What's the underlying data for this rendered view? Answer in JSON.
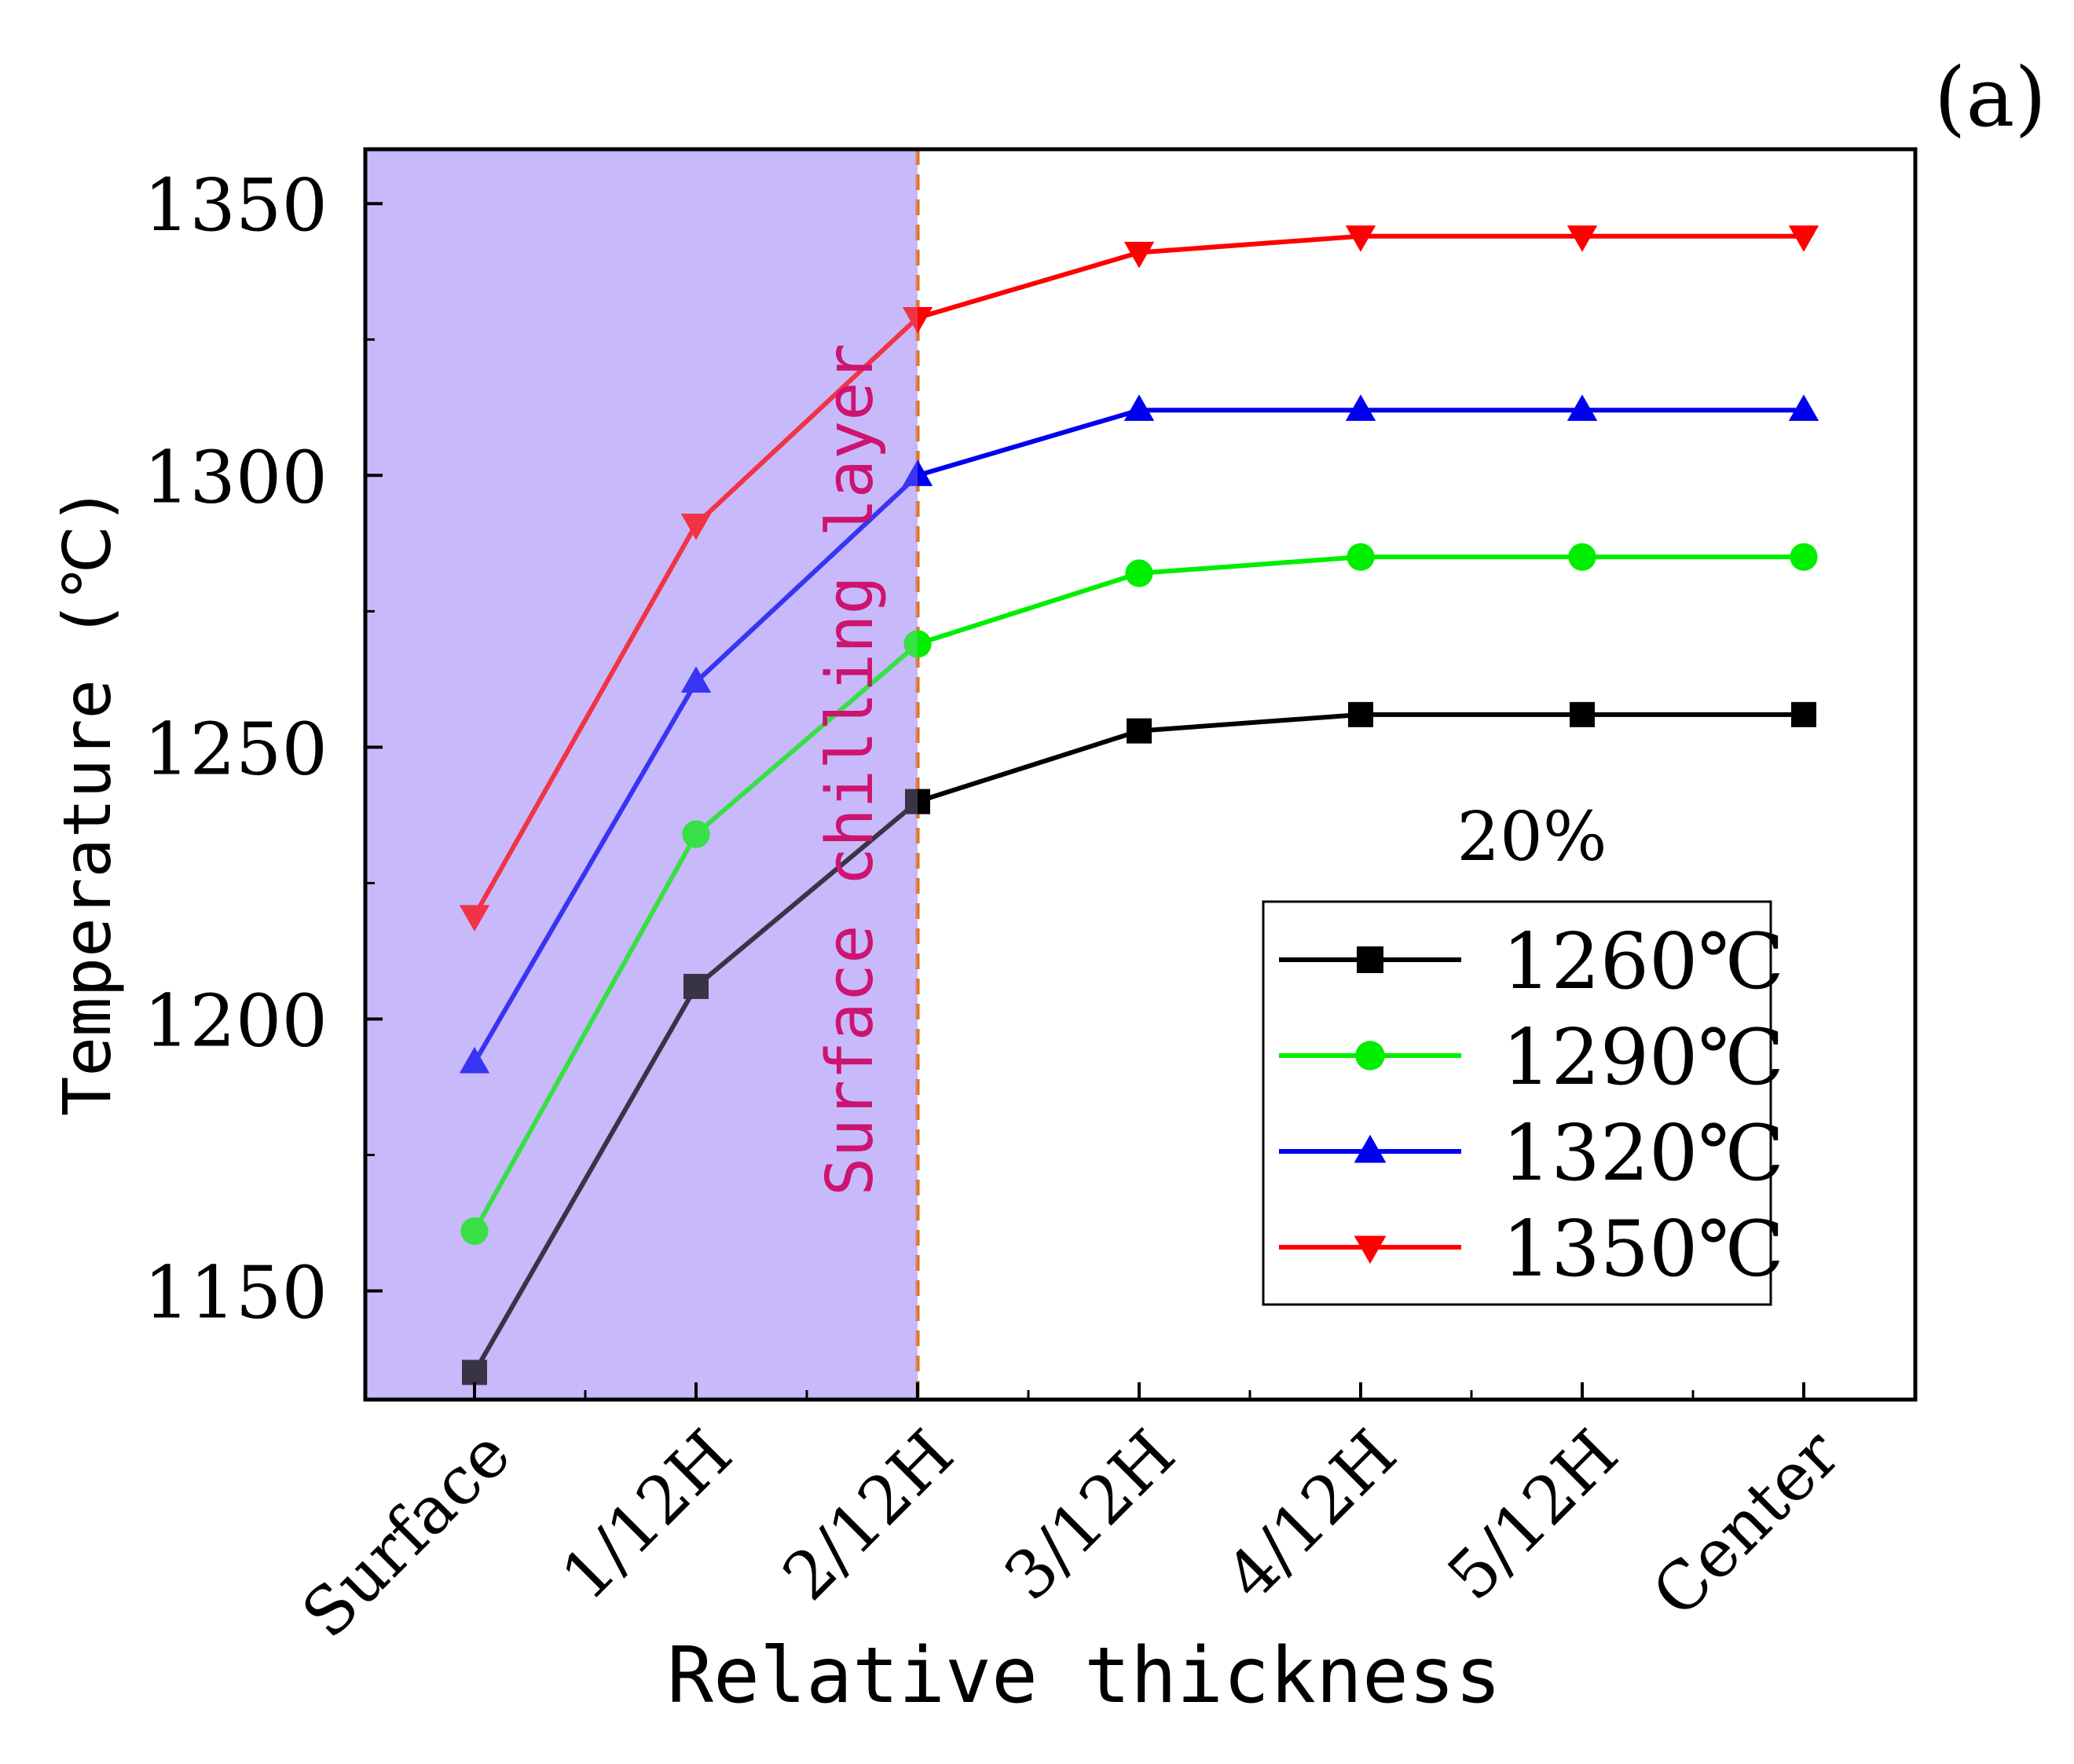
{
  "panel_label": "(a)",
  "chart_data": {
    "type": "line",
    "title": "",
    "xlabel": "Relative thickness",
    "ylabel": "Temperature (℃)",
    "categories": [
      "Surface",
      "1/12H",
      "2/12H",
      "3/12H",
      "4/12H",
      "5/12H",
      "Center"
    ],
    "yticks": [
      1150,
      1200,
      1250,
      1300,
      1350
    ],
    "ylim": [
      1130,
      1360
    ],
    "grid": false,
    "legend_title": "20%",
    "legend_position": "bottom-right",
    "region": {
      "label": "Surface chilling layer",
      "from_category": "Surface",
      "to_category": "2/12H",
      "fill_color": "#c8b9fb",
      "line_color": "#e0701e",
      "label_color": "#cc1470"
    },
    "series": [
      {
        "name": "1260℃",
        "color": "#000000",
        "marker": "square",
        "values": [
          1135,
          1206,
          1240,
          1253,
          1256,
          1256,
          1256
        ]
      },
      {
        "name": "1290℃",
        "color": "#00ee00",
        "marker": "circle",
        "values": [
          1161,
          1234,
          1269,
          1282,
          1285,
          1285,
          1285
        ]
      },
      {
        "name": "1320℃",
        "color": "#0000ee",
        "marker": "triangle-up",
        "values": [
          1192,
          1262,
          1300,
          1312,
          1312,
          1312,
          1312
        ]
      },
      {
        "name": "1350℃",
        "color": "#ff0000",
        "marker": "triangle-down",
        "values": [
          1219,
          1291,
          1329,
          1341,
          1344,
          1344,
          1344
        ]
      }
    ]
  }
}
